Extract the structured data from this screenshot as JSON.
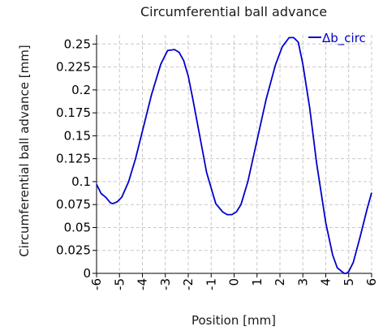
{
  "chart_data": {
    "type": "line",
    "title": "Circumferential ball advance",
    "xlabel": "Position [mm]",
    "ylabel": "Circumferential ball advance [mm]",
    "xlim": [
      -6,
      6
    ],
    "ylim": [
      0,
      0.26
    ],
    "xticks": [
      -6,
      -5,
      -4,
      -3,
      -2,
      -1,
      0,
      1,
      2,
      3,
      4,
      5,
      6
    ],
    "xtick_labels": [
      "-6",
      "-5",
      "-4",
      "-3",
      "-2",
      "-1",
      "0",
      "1",
      "2",
      "3",
      "4",
      "5",
      "6"
    ],
    "yticks": [
      0,
      0.025,
      0.05,
      0.075,
      0.1,
      0.125,
      0.15,
      0.175,
      0.2,
      0.225,
      0.25
    ],
    "ytick_labels": [
      "0",
      "0.025",
      "0.05",
      "0.075",
      "0.1",
      "0.125",
      "0.15",
      "0.175",
      "0.2",
      "0.225",
      "0.25"
    ],
    "grid": true,
    "legend_position": "top-right",
    "series": [
      {
        "name": "Δb_circ",
        "color": "#0000cc",
        "x": [
          -6,
          -5.9,
          -5.8,
          -5.6,
          -5.5,
          -5.4,
          -5.3,
          -5.2,
          -5.1,
          -4.9,
          -4.6,
          -4.3,
          -4,
          -3.6,
          -3.2,
          -2.9,
          -2.6,
          -2.4,
          -2.2,
          -2.0,
          -1.8,
          -1.5,
          -1.2,
          -0.8,
          -0.5,
          -0.3,
          -0.1,
          0.1,
          0.3,
          0.6,
          1.0,
          1.4,
          1.8,
          2.1,
          2.4,
          2.6,
          2.8,
          3.0,
          3.3,
          3.6,
          4.0,
          4.3,
          4.5,
          4.8,
          4.9,
          5.0,
          5.2,
          5.5,
          5.8,
          6.0
        ],
        "y": [
          0.097,
          0.092,
          0.087,
          0.083,
          0.08,
          0.077,
          0.076,
          0.077,
          0.078,
          0.083,
          0.1,
          0.125,
          0.155,
          0.195,
          0.228,
          0.243,
          0.244,
          0.241,
          0.232,
          0.215,
          0.19,
          0.15,
          0.11,
          0.076,
          0.067,
          0.064,
          0.064,
          0.067,
          0.075,
          0.1,
          0.145,
          0.19,
          0.227,
          0.247,
          0.257,
          0.257,
          0.252,
          0.228,
          0.18,
          0.12,
          0.055,
          0.02,
          0.006,
          0.0,
          0.0,
          0.002,
          0.012,
          0.04,
          0.07,
          0.088
        ]
      }
    ]
  }
}
